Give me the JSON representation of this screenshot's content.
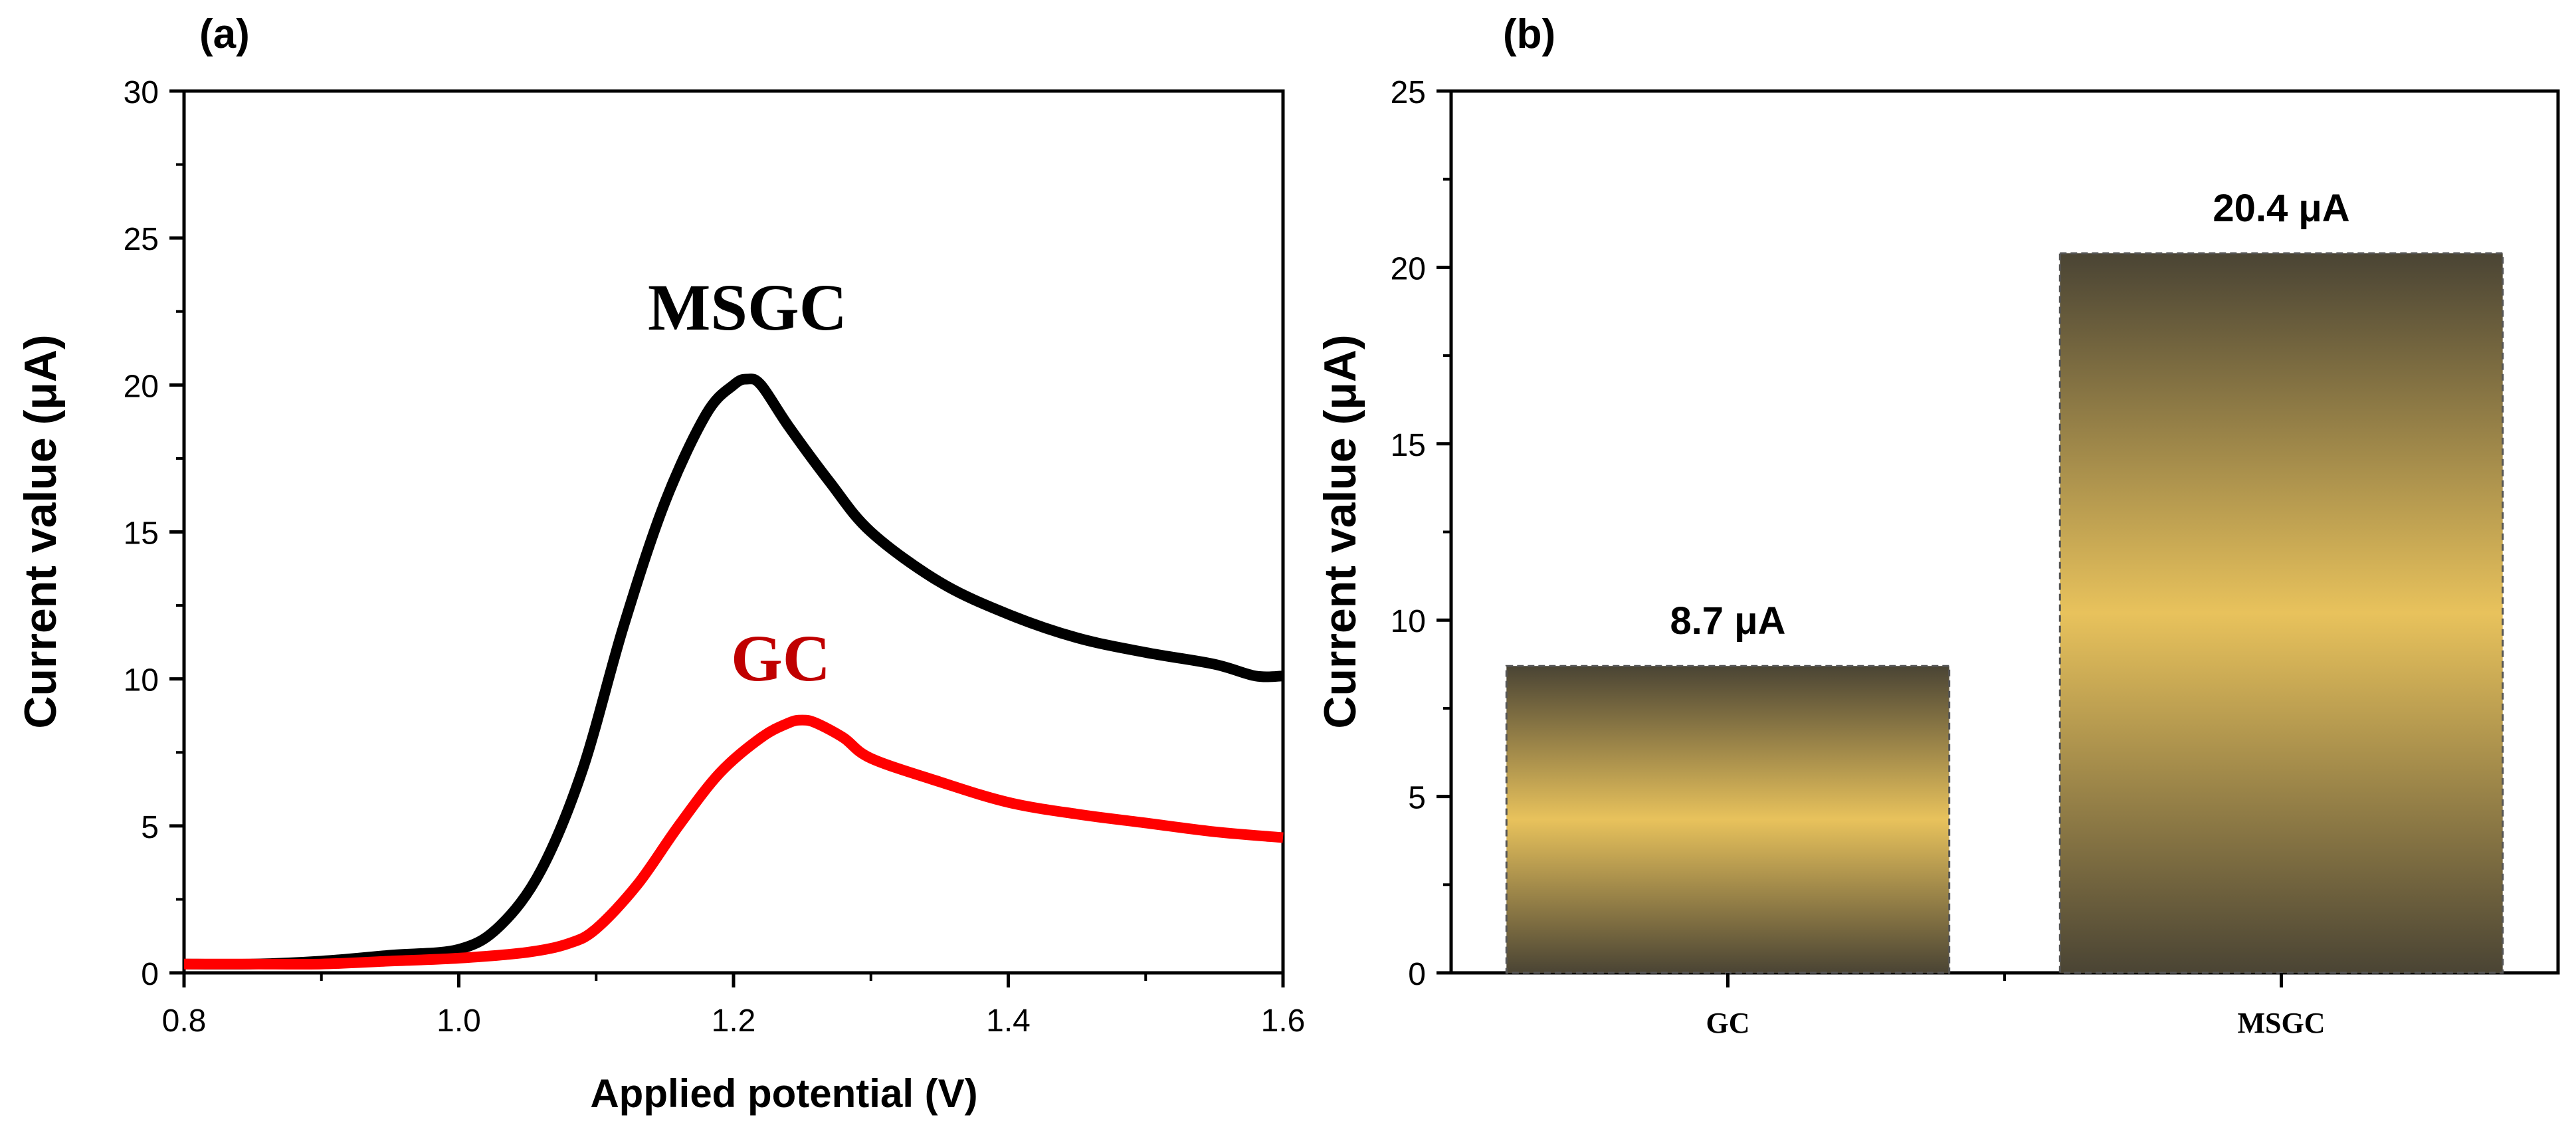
{
  "chart_data": [
    {
      "panel_label": "(a)",
      "type": "line",
      "xlabel": "Applied potential (V)",
      "ylabel": "Current value (μA)",
      "xlim": [
        0.8,
        1.6
      ],
      "ylim": [
        0,
        30
      ],
      "x_ticks": [
        "0.8",
        "1.0",
        "1.2",
        "1.4",
        "1.6"
      ],
      "y_ticks": [
        "0",
        "5",
        "10",
        "15",
        "20",
        "25",
        "30"
      ],
      "series": [
        {
          "name": "MSGC",
          "color": "#000000",
          "x": [
            0.8,
            0.85,
            0.9,
            0.95,
            1.0,
            1.03,
            1.06,
            1.09,
            1.12,
            1.15,
            1.18,
            1.2,
            1.21,
            1.22,
            1.24,
            1.27,
            1.3,
            1.35,
            1.4,
            1.45,
            1.5,
            1.55,
            1.58,
            1.6
          ],
          "y": [
            0.3,
            0.3,
            0.4,
            0.6,
            0.8,
            1.6,
            3.5,
            6.9,
            11.8,
            16.0,
            19.0,
            20.0,
            20.2,
            20.0,
            18.6,
            16.7,
            15.0,
            13.3,
            12.2,
            11.4,
            10.9,
            10.5,
            10.1,
            10.1
          ]
        },
        {
          "name": "GC",
          "color": "#ff0000",
          "x": [
            0.8,
            0.85,
            0.9,
            0.95,
            1.0,
            1.05,
            1.08,
            1.1,
            1.13,
            1.16,
            1.19,
            1.22,
            1.24,
            1.25,
            1.26,
            1.28,
            1.3,
            1.35,
            1.4,
            1.45,
            1.5,
            1.55,
            1.6
          ],
          "y": [
            0.3,
            0.3,
            0.3,
            0.4,
            0.5,
            0.7,
            1.0,
            1.5,
            3.0,
            5.0,
            6.8,
            8.0,
            8.5,
            8.6,
            8.5,
            8.0,
            7.3,
            6.5,
            5.8,
            5.4,
            5.1,
            4.8,
            4.6
          ]
        }
      ],
      "annotations": [
        {
          "text": "MSGC",
          "color": "#000000"
        },
        {
          "text": "GC",
          "color": "#c00000"
        }
      ]
    },
    {
      "panel_label": "(b)",
      "type": "bar",
      "xlabel": "",
      "ylabel": "Current value (μA)",
      "ylim": [
        0,
        25
      ],
      "y_ticks": [
        "0",
        "5",
        "10",
        "15",
        "20",
        "25"
      ],
      "categories": [
        "GC",
        "MSGC"
      ],
      "values": [
        8.7,
        20.4
      ],
      "data_labels": [
        "8.7 μA",
        "20.4 μA"
      ],
      "bar_gradient": {
        "edge": "#4a4434",
        "center": "#e8c25c"
      }
    }
  ]
}
